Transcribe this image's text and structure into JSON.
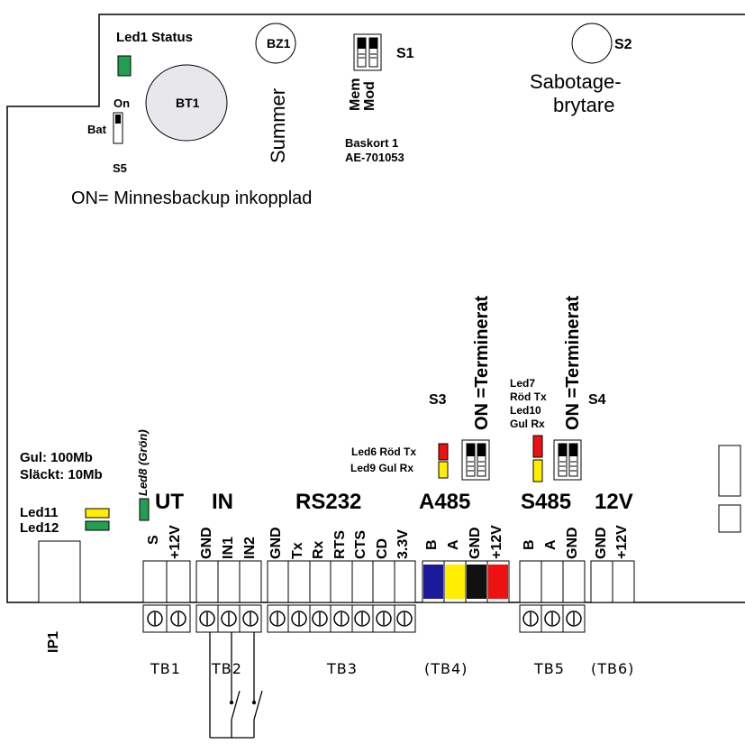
{
  "top": {
    "led1_status": "Led1 Status",
    "bz1": "BZ1",
    "s1": "S1",
    "s2": "S2",
    "sabotage": "Sabotage-",
    "brytare": "brytare",
    "bt1": "BT1",
    "on": "On",
    "bat": "Bat",
    "s5": "S5",
    "summer": "Summer",
    "mem": "Mem",
    "mod": "Mod",
    "baskort": "Baskort 1",
    "ae": "AE-701053",
    "minnesbackup": "ON= Minnesbackup inkopplad"
  },
  "middle": {
    "s3": "S3",
    "s4": "S4",
    "terminerat_a": "ON =Terminerat",
    "terminerat_b": "ON =Terminerat",
    "led6": "Led6 Röd Tx",
    "led9": "Led9 Gul  Rx",
    "led7": "Led7",
    "rod_tx": "Röd Tx",
    "led10": "Led10",
    "gul_rx": "Gul  Rx",
    "led8": "Led8 (Grön)",
    "gul100": "Gul: 100Mb",
    "slackt": "Släckt: 10Mb",
    "led11": "Led11",
    "led12": "Led12"
  },
  "groups": {
    "ut": "UT",
    "in": "IN",
    "rs232": "RS232",
    "a485": "A485",
    "s485": "S485",
    "v12": "12V"
  },
  "pins": {
    "ut": [
      "S",
      "+12V"
    ],
    "in": [
      "GND",
      "IN1",
      "IN2"
    ],
    "rs232": [
      "GND",
      "Tx",
      "Rx",
      "RTS",
      "CTS",
      "CD",
      "3.3V"
    ],
    "a485": [
      "B",
      "A",
      "GND",
      "+12V"
    ],
    "s485": [
      "B",
      "A",
      "GND"
    ],
    "v12": [
      "GND",
      "+12V"
    ]
  },
  "terminals": {
    "tb1": "TB1",
    "tb2": "TB2",
    "tb3": "TB3",
    "tb4": "(TB4)",
    "tb5": "TB5",
    "tb6": "(TB6)",
    "ip1": "IP1"
  },
  "colors": {
    "led_green": "#22a050",
    "led_yellow": "#ffee00",
    "led_red": "#ee1111",
    "a485_b": "#1a1a9a",
    "a485_a": "#ffee00",
    "a485_gnd": "#111111",
    "a485_12v": "#ee1111"
  }
}
